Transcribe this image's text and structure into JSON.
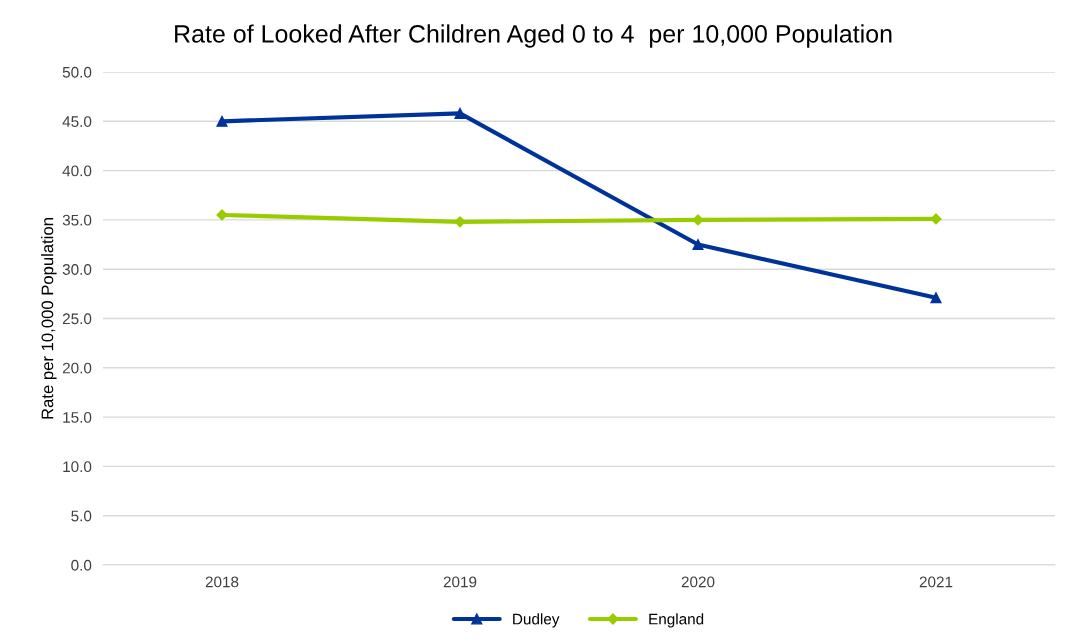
{
  "chart_data": {
    "type": "line",
    "title": "Rate of Looked After Children Aged 0 to 4  per 10,000 Population",
    "ylabel": "Rate per 10,000 Population",
    "categories": [
      "2018",
      "2019",
      "2020",
      "2021"
    ],
    "series": [
      {
        "name": "Dudley",
        "color": "#003399",
        "marker": "triangle",
        "values": [
          45.0,
          45.8,
          32.5,
          27.1
        ]
      },
      {
        "name": "England",
        "color": "#99cc00",
        "marker": "diamond",
        "values": [
          35.5,
          34.8,
          35.0,
          35.1
        ]
      }
    ],
    "ylim": [
      0,
      50
    ],
    "yticks": [
      {
        "value": 0,
        "label": "0.0"
      },
      {
        "value": 5,
        "label": "5.0"
      },
      {
        "value": 10,
        "label": "10.0"
      },
      {
        "value": 15,
        "label": "15.0"
      },
      {
        "value": 20,
        "label": "20.0"
      },
      {
        "value": 25,
        "label": "25.0"
      },
      {
        "value": 30,
        "label": "30.0"
      },
      {
        "value": 35,
        "label": "35.0"
      },
      {
        "value": 40,
        "label": "40.0"
      },
      {
        "value": 45,
        "label": "45.0"
      },
      {
        "value": 50,
        "label": "50.0"
      }
    ],
    "grid": "y",
    "legend": "bottom",
    "line_style": "solid"
  }
}
